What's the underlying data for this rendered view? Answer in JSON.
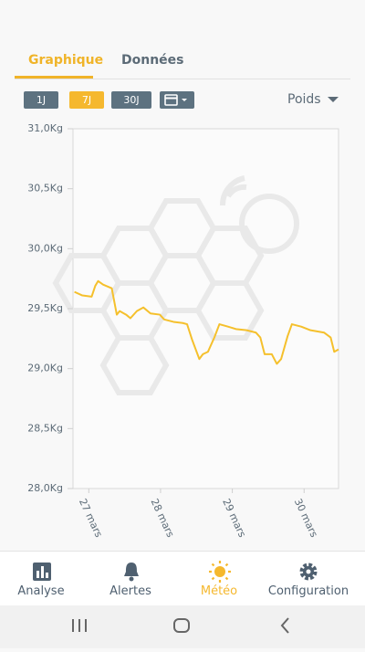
{
  "tabs": [
    "Graphique",
    "Données"
  ],
  "range_buttons": [
    "1J",
    "7J",
    "30J"
  ],
  "metric": "Poids",
  "chart_data": {
    "type": "line",
    "x": [
      26.8,
      26.91,
      27.04,
      27.09,
      27.13,
      27.2,
      27.32,
      27.39,
      27.43,
      27.52,
      27.58,
      27.67,
      27.76,
      27.86,
      27.99,
      28.05,
      28.18,
      28.31,
      28.37,
      28.44,
      28.54,
      28.59,
      28.66,
      28.75,
      28.82,
      28.94,
      29.05,
      29.2,
      29.33,
      29.39,
      29.45,
      29.55,
      29.62,
      29.68,
      29.77,
      29.83,
      29.96,
      30.09,
      30.28,
      30.37,
      30.42,
      30.48
    ],
    "series": [
      {
        "color": "#f5c02c",
        "values": [
          29.64,
          29.61,
          29.6,
          29.69,
          29.73,
          29.7,
          29.67,
          29.45,
          29.48,
          29.45,
          29.42,
          29.48,
          29.51,
          29.46,
          29.45,
          29.41,
          29.39,
          29.38,
          29.37,
          29.24,
          29.08,
          29.12,
          29.14,
          29.26,
          29.37,
          29.35,
          29.33,
          29.32,
          29.3,
          29.26,
          29.12,
          29.12,
          29.04,
          29.08,
          29.27,
          29.37,
          29.35,
          29.32,
          29.3,
          29.26,
          29.14,
          29.16
        ]
      }
    ],
    "xlim": [
      26.78,
      30.48
    ],
    "xticks": [
      {
        "value": 27,
        "label": "27 mars"
      },
      {
        "value": 28,
        "label": "28 mars"
      },
      {
        "value": 29,
        "label": "29 mars"
      },
      {
        "value": 30,
        "label": "30 mars"
      }
    ],
    "ylim": [
      28,
      31
    ],
    "yticks": [
      {
        "value": 28,
        "label": "28,0Kg"
      },
      {
        "value": 28.5,
        "label": "28,5Kg"
      },
      {
        "value": 29,
        "label": "29,0Kg"
      },
      {
        "value": 29.5,
        "label": "29,5Kg"
      },
      {
        "value": 30,
        "label": "30,0Kg"
      },
      {
        "value": 30.5,
        "label": "30,5Kg"
      },
      {
        "value": 31,
        "label": "31,0Kg"
      }
    ],
    "grid": false
  },
  "nav": [
    "Analyse",
    "Alertes",
    "Météo",
    "Configuration"
  ]
}
